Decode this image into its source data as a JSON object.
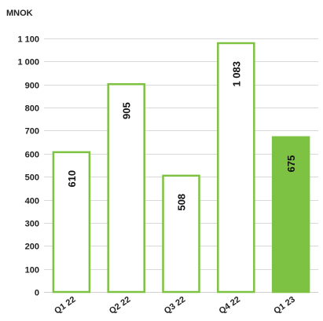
{
  "chart_data": {
    "type": "bar",
    "unit_label": "MNOK",
    "categories": [
      "Q1 22",
      "Q2 22",
      "Q3 22",
      "Q4 22",
      "Q1 23"
    ],
    "values": [
      610,
      905,
      508,
      1083,
      675
    ],
    "value_labels": [
      "610",
      "905",
      "508",
      "1 083",
      "675"
    ],
    "ylim": [
      0,
      1100
    ],
    "yticks": [
      0,
      100,
      200,
      300,
      400,
      500,
      600,
      700,
      800,
      900,
      1000,
      1100
    ],
    "ytick_labels": [
      "0",
      "100",
      "200",
      "300",
      "400",
      "500",
      "600",
      "700",
      "800",
      "900",
      "1 000",
      "1 100"
    ],
    "highlighted_index": 4,
    "colors": {
      "bar_outline": "#7dc242",
      "bar_fill": "#ffffff",
      "highlight_fill": "#7dc242",
      "grid": "#d9d9d9"
    },
    "grid": true
  }
}
